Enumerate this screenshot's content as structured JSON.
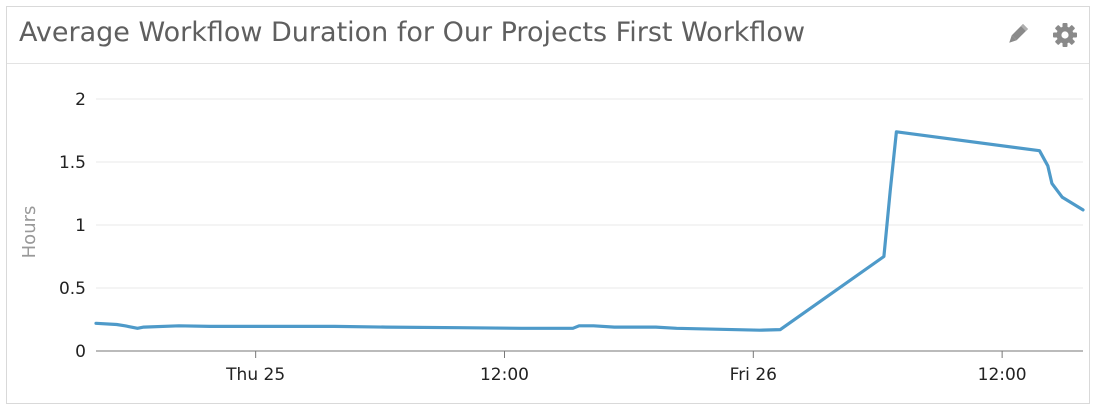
{
  "widget": {
    "title": "Average Workflow Duration for Our Projects First Workflow",
    "edit_icon": "pencil-icon",
    "settings_icon": "gear-icon"
  },
  "colors": {
    "line": "#4e9ac9",
    "grid": "#e8e8e8",
    "axis": "#777777"
  },
  "chart_data": {
    "type": "line",
    "title": "Average Workflow Duration for Our Projects First Workflow",
    "ylabel": "Hours",
    "xlabel": "",
    "ylim": [
      0,
      2
    ],
    "yticks": [
      0,
      0.5,
      1,
      1.5,
      2
    ],
    "ytick_labels": [
      "0",
      "0.5",
      "1",
      "1.5",
      "2"
    ],
    "xlim_hours": [
      0,
      47.6
    ],
    "xticks": [
      {
        "hour": 7.7,
        "label": "Thu 25"
      },
      {
        "hour": 19.7,
        "label": "12:00"
      },
      {
        "hour": 31.7,
        "label": "Fri 26"
      },
      {
        "hour": 43.7,
        "label": "12:00"
      }
    ],
    "grid": true,
    "legend": "none",
    "series": [
      {
        "x_hours": [
          0,
          1.0,
          1.4,
          2.0,
          2.3,
          4.0,
          5.5,
          8.0,
          11.5,
          14.0,
          17.5,
          20.5,
          23.0,
          23.3,
          24.0,
          25.0,
          27.0,
          28.0,
          32.0,
          33.0,
          38.0,
          38.3,
          38.6,
          45.5,
          45.9,
          46.1,
          46.6,
          47.6
        ],
        "y": [
          0.22,
          0.21,
          0.2,
          0.18,
          0.19,
          0.2,
          0.195,
          0.195,
          0.195,
          0.19,
          0.185,
          0.18,
          0.18,
          0.2,
          0.2,
          0.19,
          0.19,
          0.18,
          0.165,
          0.17,
          0.75,
          1.27,
          1.74,
          1.59,
          1.47,
          1.33,
          1.22,
          1.12
        ]
      }
    ]
  }
}
